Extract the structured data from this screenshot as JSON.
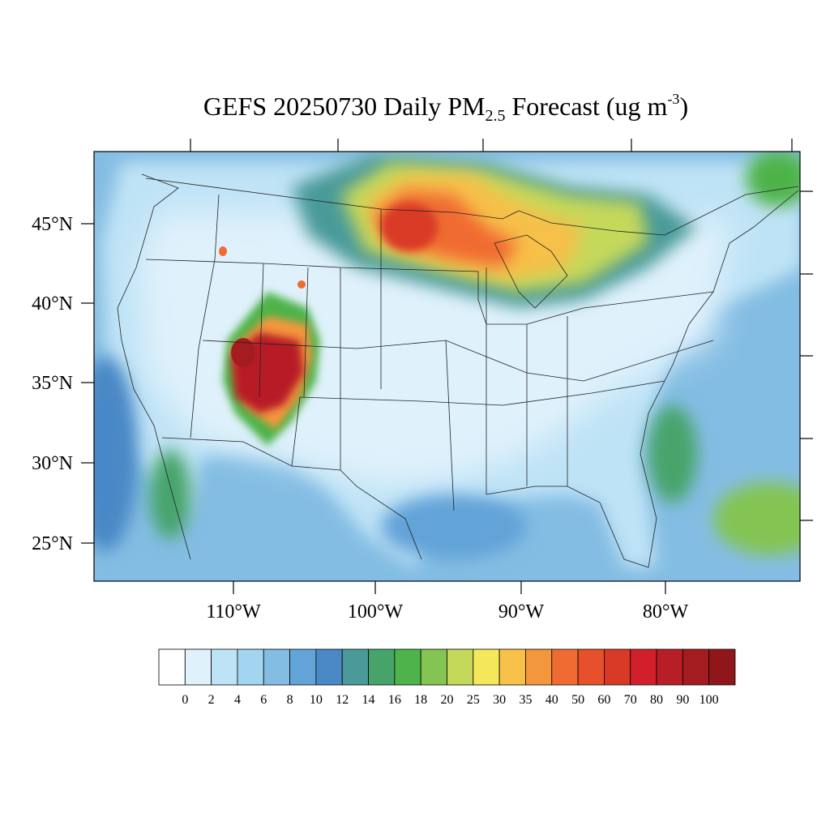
{
  "title": {
    "prefix": "GEFS 20250730 Daily PM",
    "subscript": "2.5",
    "middle": " Forecast (ug m",
    "superscript": "-3",
    "suffix": ")"
  },
  "map": {
    "lat_labels": [
      "45°N",
      "40°N",
      "35°N",
      "30°N",
      "25°N"
    ],
    "lon_labels": [
      "110°W",
      "100°W",
      "90°W",
      "80°W"
    ]
  },
  "colorbar": {
    "levels": [
      "0",
      "2",
      "4",
      "6",
      "8",
      "10",
      "12",
      "14",
      "16",
      "18",
      "20",
      "25",
      "30",
      "35",
      "40",
      "50",
      "60",
      "70",
      "80",
      "90",
      "100"
    ],
    "colors": [
      "#ffffff",
      "#dff1fb",
      "#bfe3f6",
      "#a2d5f0",
      "#84bde3",
      "#62a3d8",
      "#4a88c6",
      "#4a9a9a",
      "#46a46a",
      "#4db34a",
      "#84c452",
      "#c4d85a",
      "#f5e75a",
      "#f7c049",
      "#f4963c",
      "#f06b31",
      "#e7502b",
      "#d93a28",
      "#d1202c",
      "#b71e25",
      "#a51c20",
      "#8f171b"
    ]
  }
}
